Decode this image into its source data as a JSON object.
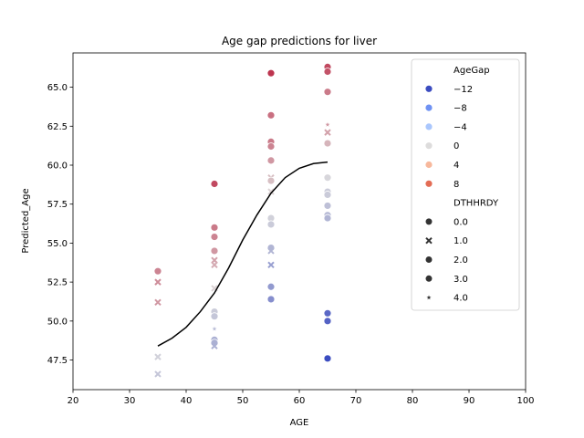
{
  "chart_data": {
    "type": "scatter",
    "title": "Age gap predictions for liver",
    "xlabel": "AGE",
    "ylabel": "Predicted_Age",
    "xlim": [
      20,
      100
    ],
    "ylim": [
      45.6,
      67.2
    ],
    "x_ticks": [
      20,
      30,
      40,
      50,
      60,
      70,
      80,
      90,
      100
    ],
    "y_ticks": [
      47.5,
      50.0,
      52.5,
      55.0,
      57.5,
      60.0,
      62.5,
      65.0
    ],
    "x_tick_labels": [
      "20",
      "30",
      "40",
      "50",
      "60",
      "70",
      "80",
      "90",
      "100"
    ],
    "y_tick_labels": [
      "47.5",
      "50.0",
      "52.5",
      "55.0",
      "57.5",
      "60.0",
      "62.5",
      "65.0"
    ],
    "grid": false,
    "legend_position": "upper-right",
    "legend": {
      "hue_title": "AgeGap",
      "hue_entries": [
        {
          "label": "−12",
          "color": "#3b4cc0"
        },
        {
          "label": "−8",
          "color": "#6f92f3"
        },
        {
          "label": "−4",
          "color": "#aac7fd"
        },
        {
          "label": "0",
          "color": "#dddcdc"
        },
        {
          "label": "4",
          "color": "#f7b89c"
        },
        {
          "label": "8",
          "color": "#e36c55"
        }
      ],
      "style_title": "DTHHRDY",
      "style_entries": [
        {
          "label": "0.0",
          "marker": "circle"
        },
        {
          "label": "1.0",
          "marker": "x"
        },
        {
          "label": "2.0",
          "marker": "circle"
        },
        {
          "label": "3.0",
          "marker": "circle"
        },
        {
          "label": "4.0",
          "marker": "star"
        }
      ]
    },
    "points": [
      {
        "x": 35,
        "y": 53.2,
        "gap": 4.5,
        "m": "circle"
      },
      {
        "x": 35,
        "y": 52.5,
        "gap": 4.0,
        "m": "x"
      },
      {
        "x": 35,
        "y": 51.2,
        "gap": 3.5,
        "m": "x"
      },
      {
        "x": 35,
        "y": 47.7,
        "gap": -1.0,
        "m": "x"
      },
      {
        "x": 35,
        "y": 46.6,
        "gap": -2.0,
        "m": "x"
      },
      {
        "x": 45,
        "y": 58.8,
        "gap": 7.5,
        "m": "circle"
      },
      {
        "x": 45,
        "y": 56.0,
        "gap": 5.0,
        "m": "circle"
      },
      {
        "x": 45,
        "y": 55.4,
        "gap": 4.5,
        "m": "circle"
      },
      {
        "x": 45,
        "y": 54.5,
        "gap": 3.5,
        "m": "circle"
      },
      {
        "x": 45,
        "y": 53.9,
        "gap": 3.0,
        "m": "x"
      },
      {
        "x": 45,
        "y": 53.6,
        "gap": 2.5,
        "m": "x"
      },
      {
        "x": 45,
        "y": 52.1,
        "gap": 0.5,
        "m": "x"
      },
      {
        "x": 45,
        "y": 50.6,
        "gap": -1.5,
        "m": "circle"
      },
      {
        "x": 45,
        "y": 50.3,
        "gap": -2.0,
        "m": "circle"
      },
      {
        "x": 45,
        "y": 49.5,
        "gap": -3.0,
        "m": "star"
      },
      {
        "x": 45,
        "y": 48.8,
        "gap": -4.0,
        "m": "circle"
      },
      {
        "x": 45,
        "y": 48.6,
        "gap": -4.0,
        "m": "circle"
      },
      {
        "x": 45,
        "y": 48.4,
        "gap": -4.0,
        "m": "x"
      },
      {
        "x": 55,
        "y": 65.9,
        "gap": 8.5,
        "m": "circle"
      },
      {
        "x": 55,
        "y": 63.2,
        "gap": 5.5,
        "m": "circle"
      },
      {
        "x": 55,
        "y": 61.5,
        "gap": 5.0,
        "m": "circle"
      },
      {
        "x": 55,
        "y": 61.2,
        "gap": 4.5,
        "m": "circle"
      },
      {
        "x": 55,
        "y": 60.3,
        "gap": 3.5,
        "m": "circle"
      },
      {
        "x": 55,
        "y": 59.2,
        "gap": 1.5,
        "m": "x"
      },
      {
        "x": 55,
        "y": 59.0,
        "gap": 1.5,
        "m": "circle"
      },
      {
        "x": 55,
        "y": 58.3,
        "gap": 0.5,
        "m": "x"
      },
      {
        "x": 55,
        "y": 56.6,
        "gap": -1.0,
        "m": "circle"
      },
      {
        "x": 55,
        "y": 56.2,
        "gap": -1.5,
        "m": "circle"
      },
      {
        "x": 55,
        "y": 54.7,
        "gap": -3.5,
        "m": "circle"
      },
      {
        "x": 55,
        "y": 54.5,
        "gap": -3.5,
        "m": "x"
      },
      {
        "x": 55,
        "y": 53.6,
        "gap": -5.5,
        "m": "x"
      },
      {
        "x": 55,
        "y": 52.2,
        "gap": -6.0,
        "m": "circle"
      },
      {
        "x": 55,
        "y": 51.4,
        "gap": -7.0,
        "m": "circle"
      },
      {
        "x": 65,
        "y": 66.3,
        "gap": 7.5,
        "m": "circle"
      },
      {
        "x": 65,
        "y": 66.0,
        "gap": 7.0,
        "m": "circle"
      },
      {
        "x": 65,
        "y": 64.7,
        "gap": 5.0,
        "m": "circle"
      },
      {
        "x": 65,
        "y": 62.6,
        "gap": 3.5,
        "m": "star"
      },
      {
        "x": 65,
        "y": 62.1,
        "gap": 3.0,
        "m": "x"
      },
      {
        "x": 65,
        "y": 61.4,
        "gap": 2.0,
        "m": "circle"
      },
      {
        "x": 65,
        "y": 59.2,
        "gap": -0.5,
        "m": "circle"
      },
      {
        "x": 65,
        "y": 58.3,
        "gap": -1.5,
        "m": "circle"
      },
      {
        "x": 65,
        "y": 58.1,
        "gap": -1.5,
        "m": "circle"
      },
      {
        "x": 65,
        "y": 57.4,
        "gap": -2.5,
        "m": "circle"
      },
      {
        "x": 65,
        "y": 56.8,
        "gap": -3.0,
        "m": "circle"
      },
      {
        "x": 65,
        "y": 56.6,
        "gap": -3.5,
        "m": "circle"
      },
      {
        "x": 65,
        "y": 50.5,
        "gap": -10.5,
        "m": "circle"
      },
      {
        "x": 65,
        "y": 50.0,
        "gap": -11.0,
        "m": "circle"
      },
      {
        "x": 65,
        "y": 47.6,
        "gap": -13.0,
        "m": "circle"
      }
    ],
    "trend_line": {
      "x": [
        35,
        37.5,
        40,
        42.5,
        45,
        47.5,
        50,
        52.5,
        55,
        57.5,
        60,
        62.5,
        65
      ],
      "y": [
        48.4,
        48.9,
        49.6,
        50.6,
        51.8,
        53.4,
        55.2,
        56.8,
        58.2,
        59.2,
        59.8,
        60.1,
        60.2
      ]
    },
    "colors": {
      "neg": "#3b4cc0",
      "mid": "#dddcdc",
      "pos": "#b40426",
      "line": "#000000"
    }
  }
}
